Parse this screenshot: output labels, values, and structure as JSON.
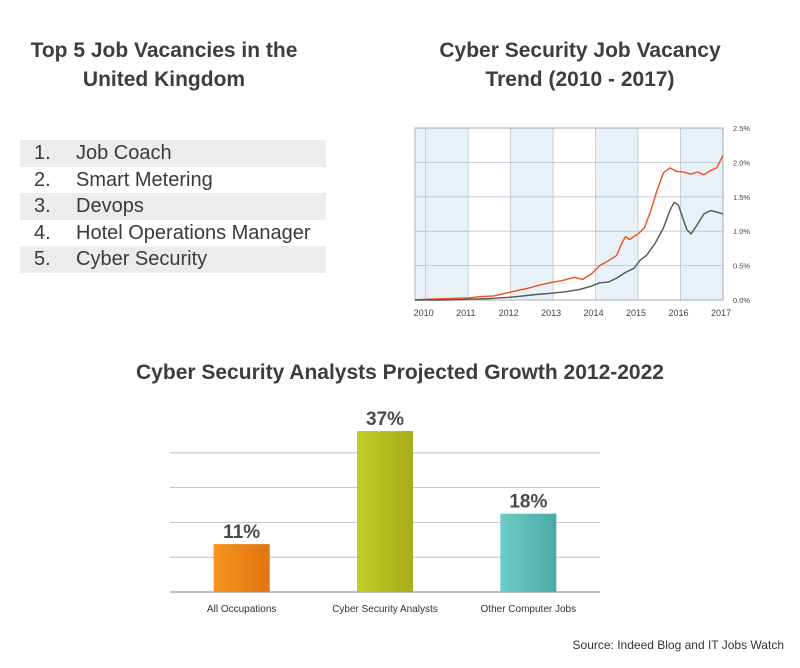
{
  "list": {
    "title_line1": "Top 5 Job Vacancies in the",
    "title_line2": "United Kingdom",
    "items": [
      {
        "rank": "1.",
        "name": "Job Coach"
      },
      {
        "rank": "2.",
        "name": "Smart Metering"
      },
      {
        "rank": "3.",
        "name": "Devops"
      },
      {
        "rank": "4.",
        "name": "Hotel Operations Manager"
      },
      {
        "rank": "5.",
        "name": "Cyber Security"
      }
    ]
  },
  "source": "Source: Indeed Blog and IT Jobs Watch",
  "chart_data": [
    {
      "type": "line",
      "title_line1": "Cyber Security Job Vacancy",
      "title_line2": "Trend (2010 - 2017)",
      "x_ticks": [
        "2010",
        "2011",
        "2012",
        "2013",
        "2014",
        "2015",
        "2016",
        "2017"
      ],
      "y_ticks": [
        "0.0%",
        "0.5%",
        "1.0%",
        "1.5%",
        "2.0%",
        "2.5%"
      ],
      "ylim": [
        0,
        2.5
      ],
      "xlim": [
        2009.75,
        2017.0
      ],
      "grid": true,
      "series": [
        {
          "color": "#e8531c",
          "points": [
            [
              2009.75,
              0.0
            ],
            [
              2010.0,
              0.01
            ],
            [
              2010.5,
              0.02
            ],
            [
              2011.0,
              0.03
            ],
            [
              2011.3,
              0.05
            ],
            [
              2011.6,
              0.06
            ],
            [
              2011.9,
              0.1
            ],
            [
              2012.1,
              0.13
            ],
            [
              2012.4,
              0.17
            ],
            [
              2012.7,
              0.22
            ],
            [
              2013.0,
              0.26
            ],
            [
              2013.2,
              0.28
            ],
            [
              2013.5,
              0.33
            ],
            [
              2013.7,
              0.3
            ],
            [
              2013.9,
              0.38
            ],
            [
              2014.1,
              0.5
            ],
            [
              2014.3,
              0.57
            ],
            [
              2014.5,
              0.65
            ],
            [
              2014.6,
              0.8
            ],
            [
              2014.7,
              0.92
            ],
            [
              2014.8,
              0.88
            ],
            [
              2015.0,
              0.96
            ],
            [
              2015.15,
              1.05
            ],
            [
              2015.3,
              1.3
            ],
            [
              2015.45,
              1.6
            ],
            [
              2015.6,
              1.85
            ],
            [
              2015.75,
              1.92
            ],
            [
              2015.9,
              1.87
            ],
            [
              2016.05,
              1.86
            ],
            [
              2016.25,
              1.83
            ],
            [
              2016.4,
              1.86
            ],
            [
              2016.55,
              1.82
            ],
            [
              2016.7,
              1.88
            ],
            [
              2016.85,
              1.92
            ],
            [
              2017.0,
              2.1
            ]
          ]
        },
        {
          "color": "#555555",
          "points": [
            [
              2009.75,
              0.0
            ],
            [
              2010.0,
              0.0
            ],
            [
              2010.5,
              0.0
            ],
            [
              2011.0,
              0.01
            ],
            [
              2011.5,
              0.02
            ],
            [
              2012.0,
              0.04
            ],
            [
              2012.3,
              0.06
            ],
            [
              2012.6,
              0.08
            ],
            [
              2013.0,
              0.1
            ],
            [
              2013.3,
              0.12
            ],
            [
              2013.6,
              0.15
            ],
            [
              2013.9,
              0.2
            ],
            [
              2014.1,
              0.25
            ],
            [
              2014.3,
              0.26
            ],
            [
              2014.5,
              0.32
            ],
            [
              2014.7,
              0.4
            ],
            [
              2014.9,
              0.46
            ],
            [
              2015.05,
              0.58
            ],
            [
              2015.2,
              0.65
            ],
            [
              2015.4,
              0.82
            ],
            [
              2015.6,
              1.05
            ],
            [
              2015.75,
              1.3
            ],
            [
              2015.85,
              1.42
            ],
            [
              2015.95,
              1.38
            ],
            [
              2016.05,
              1.2
            ],
            [
              2016.15,
              1.02
            ],
            [
              2016.25,
              0.96
            ],
            [
              2016.4,
              1.1
            ],
            [
              2016.55,
              1.25
            ],
            [
              2016.7,
              1.3
            ],
            [
              2016.85,
              1.28
            ],
            [
              2017.0,
              1.25
            ]
          ]
        }
      ]
    },
    {
      "type": "bar",
      "title": "Cyber Security Analysts Projected Growth 2012-2022",
      "categories": [
        "All Occupations",
        "Cyber Security Analysts",
        "Other Computer Jobs"
      ],
      "values": [
        11,
        37,
        18
      ],
      "value_labels": [
        "11%",
        "37%",
        "18%"
      ],
      "colors": [
        [
          "#f7941d",
          "#e07410"
        ],
        [
          "#c4cc27",
          "#a5ad1a"
        ],
        [
          "#6ecbc6",
          "#4aaaa5"
        ]
      ],
      "ylim": [
        0,
        40
      ],
      "grid": true
    }
  ]
}
